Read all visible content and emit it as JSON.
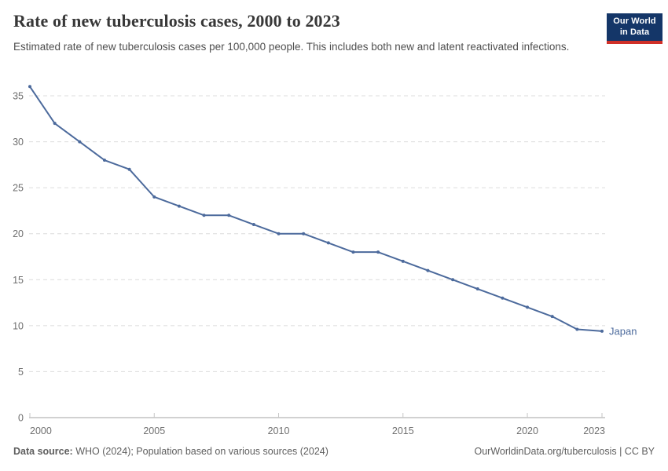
{
  "header": {
    "title": "Rate of new tuberculosis cases, 2000 to 2023",
    "subtitle": "Estimated rate of new tuberculosis cases per 100,000 people. This includes both new and latent reactivated infections.",
    "logo": {
      "line1": "Our World",
      "line2": "in Data"
    }
  },
  "chart_data": {
    "type": "line",
    "title": "Rate of new tuberculosis cases, 2000 to 2023",
    "xlabel": "",
    "ylabel": "",
    "x": [
      2000,
      2001,
      2002,
      2003,
      2004,
      2005,
      2006,
      2007,
      2008,
      2009,
      2010,
      2011,
      2012,
      2013,
      2014,
      2015,
      2016,
      2017,
      2018,
      2019,
      2020,
      2021,
      2022,
      2023
    ],
    "series": [
      {
        "name": "Japan",
        "values": [
          36,
          32,
          30,
          28,
          27,
          24,
          23,
          22,
          22,
          21,
          20,
          20,
          19,
          18,
          18,
          17,
          16,
          15,
          14,
          13,
          12,
          11,
          9.6,
          9.4
        ]
      }
    ],
    "ylim": [
      0,
      36
    ],
    "yticks": [
      0,
      5,
      10,
      15,
      20,
      25,
      30,
      35
    ],
    "xticks": [
      2000,
      2005,
      2010,
      2015,
      2020,
      2023
    ],
    "grid": true,
    "legend_position": "end-of-line"
  },
  "footer": {
    "source_label": "Data source:",
    "source_text": " WHO (2024); Population based on various sources (2024)",
    "link_text": "OurWorldinData.org/tuberculosis | CC BY"
  },
  "colors": {
    "line": "#4C6A9C",
    "grid": "#dcdcdc",
    "axis": "#a3a3a3",
    "tick": "#c6c6c6",
    "logo_bg": "#143668",
    "logo_bar": "#d03028"
  }
}
